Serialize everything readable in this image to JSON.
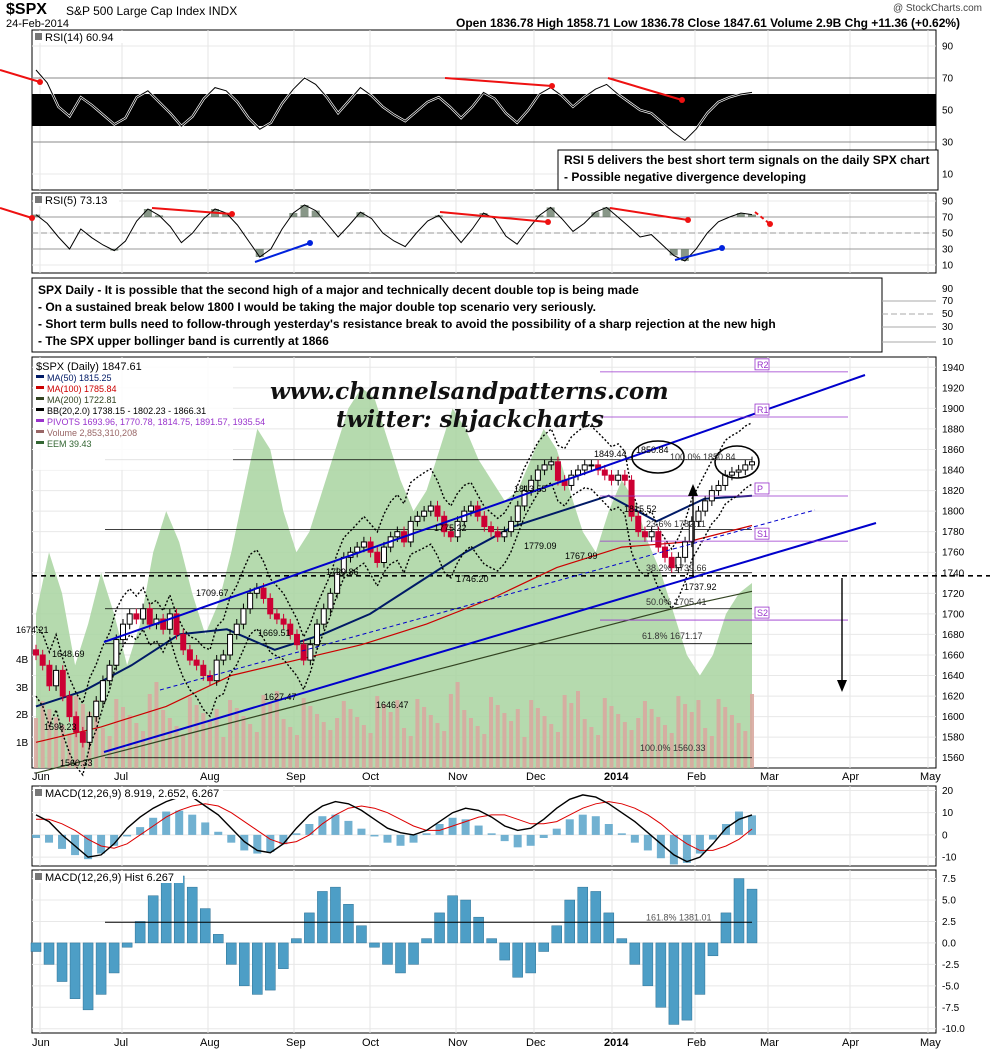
{
  "header": {
    "symbol": "$SPX",
    "description": "S&P 500 Large Cap Index  INDX",
    "date": "24-Feb-2014",
    "ohlc": "Open 1836.78   High 1858.71   Low 1836.78   Close 1847.61   Volume 2.9B   Chg +11.36 (+0.62%)",
    "credit": "@ StockCharts.com"
  },
  "annotations": {
    "rsi_note": [
      "RSI 5 delivers the best short term signals on the daily SPX chart",
      "- Possible negative divergence developing"
    ],
    "spx_note": [
      "SPX Daily - It is possible that the second high of a major and technically decent double top is being made",
      "- On a sustained break below 1800 I would be taking the major double top scenario very seriously.",
      "- Short term bulls need to follow-through yesterday's resistance break to avoid the possibility of a sharp rejection at the new high",
      "- The SPX upper bollinger band is currently at 1866"
    ],
    "watermark_site": "www.channelsandpatterns.com",
    "watermark_twitter": "twitter: shjackcharts"
  },
  "colors": {
    "price_up": "#000000",
    "price_down": "#cc0033",
    "ma50": "#001a66",
    "ma100": "#cc0000",
    "ma200": "#334422",
    "bollinger": "#000000",
    "pivots": "#9933cc",
    "eem_area": "#a8d4a0",
    "volume": "#d8a8a0",
    "channel": "#0000cc",
    "arrow_red": "#ee1111",
    "arrow_blue": "#0022dd",
    "macd_hist": "#4d9ec6",
    "macd_line": "#000000",
    "macd_signal": "#dd0000",
    "rsi_band": "#000000",
    "rsi_pos": "#556b55"
  },
  "chart_data": [
    {
      "id": "rsi14",
      "type": "line",
      "title": "RSI(14) 60.94",
      "y_ticks": [
        90,
        70,
        50,
        30,
        10
      ],
      "ylim": [
        0,
        100
      ],
      "last": 60.94,
      "values": [
        75,
        67,
        52,
        46,
        58,
        53,
        47,
        41,
        45,
        58,
        62,
        55,
        48,
        40,
        46,
        57,
        64,
        62,
        55,
        45,
        38,
        42,
        54,
        63,
        70,
        66,
        58,
        48,
        56,
        64,
        59,
        52,
        47,
        43,
        49,
        55,
        58,
        52,
        45,
        52,
        61,
        57,
        48,
        42,
        50,
        60,
        64,
        59,
        52,
        58,
        63,
        66,
        60,
        55,
        50,
        48,
        42,
        36,
        31,
        38,
        48,
        55,
        58,
        60,
        61
      ]
    },
    {
      "id": "rsi5",
      "type": "line",
      "title": "RSI(5) 73.13",
      "y_ticks": [
        90,
        70,
        50,
        30,
        10
      ],
      "ylim": [
        0,
        100
      ],
      "last": 73.13,
      "values": [
        73,
        62,
        45,
        30,
        55,
        44,
        35,
        28,
        40,
        65,
        80,
        72,
        58,
        38,
        50,
        68,
        80,
        75,
        60,
        40,
        20,
        30,
        55,
        75,
        85,
        78,
        62,
        45,
        60,
        76,
        68,
        50,
        40,
        33,
        50,
        65,
        72,
        55,
        38,
        55,
        75,
        68,
        46,
        36,
        55,
        72,
        82,
        68,
        52,
        62,
        76,
        82,
        70,
        58,
        45,
        48,
        35,
        22,
        15,
        30,
        50,
        64,
        70,
        75,
        73
      ]
    },
    {
      "id": "price",
      "type": "candlestick",
      "title": "$SPX (Daily) 1847.61",
      "x_ticks": [
        "Jun",
        "Jul",
        "Aug",
        "Sep",
        "Oct",
        "Nov",
        "Dec",
        "2014",
        "Feb",
        "Mar",
        "Apr",
        "May"
      ],
      "y_ticks": [
        1940,
        1920,
        1900,
        1880,
        1860,
        1840,
        1820,
        1800,
        1780,
        1760,
        1740,
        1720,
        1700,
        1680,
        1660,
        1640,
        1620,
        1600,
        1580,
        1560
      ],
      "volume_ticks": [
        "4B",
        "3B",
        "2B",
        "1B"
      ],
      "ylim": [
        1550,
        1950
      ],
      "legend": [
        "MA(50) 1815.25",
        "MA(100) 1785.84",
        "MA(200) 1722.81",
        "BB(20,2.0) 1738.15 - 1802.23 - 1866.31",
        "PIVOTS 1693.96, 1770.78, 1814.75, 1891.57, 1935.54",
        "Volume 2,853,310,208",
        "EEM 39.43"
      ],
      "pivot_labels": [
        "R2",
        "R1",
        "P",
        "S1",
        "S2"
      ],
      "pivots": [
        1935.54,
        1891.57,
        1814.75,
        1770.78,
        1693.96
      ],
      "price_labels": [
        {
          "text": "1674.21",
          "date": "2013-05-28",
          "value": 1674.21
        },
        {
          "text": "1648.69",
          "date": "2013-06-04",
          "value": 1648.69
        },
        {
          "text": "1598.23",
          "date": "2013-06-11",
          "value": 1598.23
        },
        {
          "text": "1560.33",
          "date": "2013-06-24",
          "value": 1560.33
        },
        {
          "text": "1709.67",
          "date": "2013-08-02",
          "value": 1709.67
        },
        {
          "text": "1669.51",
          "date": "2013-08-19",
          "value": 1669.51
        },
        {
          "text": "1627.47",
          "date": "2013-08-28",
          "value": 1627.47
        },
        {
          "text": "1729.86",
          "date": "2013-09-18",
          "value": 1729.86
        },
        {
          "text": "1646.47",
          "date": "2013-10-09",
          "value": 1646.47
        },
        {
          "text": "1775.22",
          "date": "2013-10-29",
          "value": 1775.22
        },
        {
          "text": "1746.20",
          "date": "2013-11-07",
          "value": 1746.2
        },
        {
          "text": "1813.55",
          "date": "2013-11-27",
          "value": 1813.55
        },
        {
          "text": "1779.09",
          "date": "2013-12-09",
          "value": 1779.09
        },
        {
          "text": "1767.99",
          "date": "2013-12-13",
          "value": 1767.99
        },
        {
          "text": "1849.44",
          "date": "2013-12-31",
          "value": 1849.44
        },
        {
          "text": "1850.84",
          "date": "2014-01-15",
          "value": 1850.84
        },
        {
          "text": "1815.52",
          "date": "2014-01-13",
          "value": 1815.52
        },
        {
          "text": "1737.92",
          "date": "2014-02-05",
          "value": 1737.92
        }
      ],
      "fib_labels": [
        {
          "text": "100.0% 1850.84",
          "value": 1850.84
        },
        {
          "text": "23.6% 1782.11",
          "value": 1782.11
        },
        {
          "text": "38.2% 1739.66",
          "value": 1739.66
        },
        {
          "text": "50.0% 1705.41",
          "value": 1705.41
        },
        {
          "text": "61.8% 1671.17",
          "value": 1671.17
        },
        {
          "text": "100.0% 1560.33",
          "value": 1560.33
        }
      ],
      "closes": [
        1660,
        1650,
        1630,
        1645,
        1620,
        1600,
        1585,
        1575,
        1600,
        1615,
        1635,
        1650,
        1675,
        1690,
        1700,
        1695,
        1705,
        1690,
        1695,
        1685,
        1700,
        1680,
        1665,
        1655,
        1650,
        1640,
        1635,
        1655,
        1660,
        1680,
        1690,
        1705,
        1720,
        1725,
        1715,
        1700,
        1695,
        1690,
        1680,
        1670,
        1655,
        1670,
        1690,
        1705,
        1720,
        1740,
        1755,
        1760,
        1765,
        1770,
        1760,
        1750,
        1765,
        1775,
        1780,
        1770,
        1790,
        1795,
        1800,
        1805,
        1795,
        1780,
        1775,
        1790,
        1800,
        1805,
        1795,
        1785,
        1780,
        1775,
        1780,
        1790,
        1805,
        1820,
        1830,
        1840,
        1845,
        1848,
        1830,
        1825,
        1835,
        1840,
        1845,
        1845,
        1840,
        1835,
        1830,
        1835,
        1830,
        1795,
        1780,
        1775,
        1780,
        1765,
        1755,
        1745,
        1755,
        1770,
        1790,
        1800,
        1810,
        1820,
        1825,
        1835,
        1838,
        1840,
        1845,
        1848
      ]
    },
    {
      "id": "macd",
      "type": "line",
      "title": "MACD(12,26,9) 8.919, 2.652, 6.267",
      "y_ticks": [
        20,
        10,
        0,
        -10
      ],
      "ylim": [
        -14,
        22
      ],
      "macd": [
        9,
        6,
        0,
        -5,
        -10,
        -9,
        -4,
        3,
        8,
        12,
        15,
        17,
        17,
        13,
        9,
        3,
        -3,
        -7,
        -8,
        -4,
        3,
        9,
        13,
        15,
        14,
        11,
        7,
        3,
        1,
        0,
        2,
        6,
        10,
        12,
        11,
        8,
        4,
        2,
        3,
        7,
        12,
        16,
        18,
        17,
        14,
        10,
        6,
        1,
        -4,
        -9,
        -12,
        -10,
        -4,
        3,
        7,
        9
      ],
      "signal": [
        7,
        7,
        5,
        2,
        -2,
        -5,
        -6,
        -4,
        0,
        4,
        8,
        11,
        13,
        14,
        13,
        10,
        6,
        2,
        -2,
        -4,
        -3,
        0,
        5,
        9,
        12,
        13,
        12,
        10,
        7,
        4,
        2,
        2,
        4,
        6,
        8,
        9,
        9,
        7,
        5,
        5,
        6,
        9,
        12,
        14,
        15,
        14,
        12,
        9,
        5,
        0,
        -4,
        -7,
        -7,
        -5,
        -2,
        2.652
      ]
    },
    {
      "id": "macd_hist",
      "type": "bar",
      "title": "MACD(12,26,9) Hist 6.267",
      "y_ticks": [
        7.5,
        5.0,
        2.5,
        0.0,
        -2.5,
        -5.0,
        -7.5,
        -10.0
      ],
      "ylim": [
        -10.5,
        8.5
      ],
      "fib_label": "161.8% 1381.01",
      "values": [
        -1,
        -2.5,
        -4.5,
        -6.5,
        -7.8,
        -6,
        -3.5,
        -0.5,
        2.5,
        5.5,
        7.5,
        7.8,
        6.5,
        4,
        1,
        -2.5,
        -5,
        -6,
        -5.5,
        -3,
        0.5,
        3.5,
        6,
        6.5,
        4.5,
        2,
        -0.5,
        -2.5,
        -3.5,
        -2.5,
        0.5,
        3.5,
        5.5,
        5,
        3,
        0.5,
        -2,
        -4,
        -3.5,
        -1,
        2,
        5,
        6.5,
        6,
        3.5,
        0.5,
        -2.5,
        -5,
        -7.5,
        -9.5,
        -9,
        -6,
        -1.5,
        3.5,
        7.5,
        6.27
      ]
    }
  ]
}
